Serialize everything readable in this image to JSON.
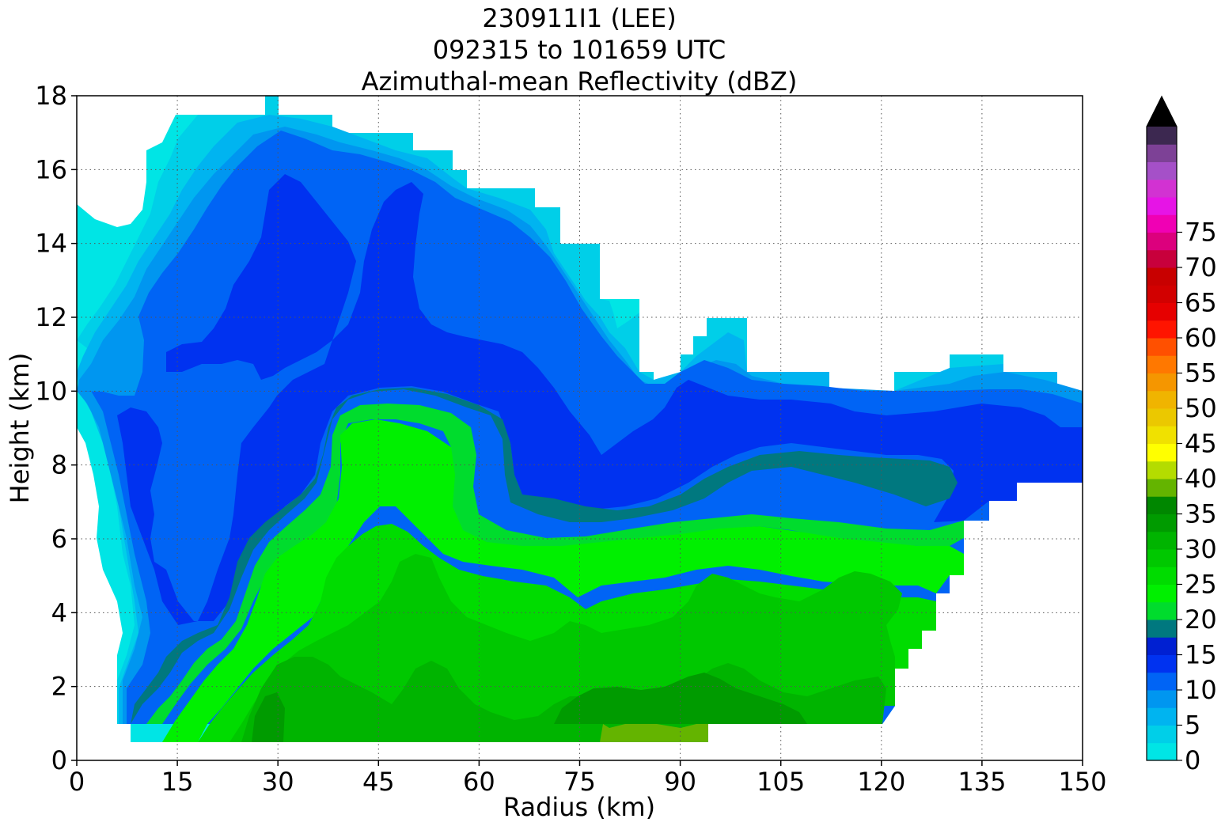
{
  "chart_data": {
    "type": "heatmap",
    "title_lines": [
      "230911I1 (LEE)",
      "092315 to 101659 UTC",
      "Azimuthal-mean Reflectivity (dBZ)"
    ],
    "xlabel": "Radius (km)",
    "ylabel": "Height (km)",
    "xlim": [
      0,
      150
    ],
    "ylim": [
      0,
      18
    ],
    "xticks": [
      0,
      15,
      30,
      45,
      60,
      75,
      90,
      105,
      120,
      135,
      150
    ],
    "yticks": [
      0,
      2,
      4,
      6,
      8,
      10,
      12,
      14,
      16,
      18
    ],
    "grid": true,
    "colorbar": {
      "levels_min": 0,
      "levels_step": 2.5,
      "tick_values": [
        0,
        5,
        10,
        15,
        20,
        25,
        30,
        35,
        40,
        45,
        50,
        55,
        60,
        65,
        70,
        75
      ],
      "extend": "max",
      "extend_color": "#000000",
      "colors": [
        "#00e5e5",
        "#00cfe8",
        "#00b4f0",
        "#0096f0",
        "#0064f5",
        "#0032f0",
        "#0020d2",
        "#00787f",
        "#00dc2d",
        "#00f000",
        "#00dc00",
        "#00c800",
        "#00b400",
        "#009b00",
        "#008700",
        "#64b400",
        "#b4dc00",
        "#ffff00",
        "#f0e100",
        "#ebc800",
        "#f0b400",
        "#f59600",
        "#ff7800",
        "#ff5000",
        "#ff1400",
        "#e60000",
        "#d20000",
        "#c80000",
        "#c8003c",
        "#dc007d",
        "#f000b4",
        "#e614e6",
        "#d232d2",
        "#a550c8",
        "#7d4196",
        "#3c2850"
      ]
    },
    "vertical_profile": {
      "description": "Approximate reflectivity (dBZ) structure with height; regions outside echo are blank",
      "radius_km": [
        0,
        5,
        10,
        15,
        20,
        30,
        40,
        45,
        50,
        60,
        70,
        80,
        90,
        100,
        105,
        120,
        130,
        135,
        145,
        150
      ],
      "echo_top_km": [
        15.0,
        14.5,
        16.5,
        17.5,
        17.5,
        18.0,
        17.5,
        17.0,
        16.5,
        15.5,
        15.0,
        12.0,
        10.0,
        12.0,
        10.5,
        10.0,
        11.0,
        10.5,
        10.0,
        10.0
      ],
      "echo_base_km": [
        10.0,
        8.0,
        1.0,
        0.5,
        0.5,
        0.5,
        0.5,
        0.5,
        0.5,
        0.5,
        0.5,
        0.5,
        0.5,
        1.0,
        1.0,
        1.0,
        4.5,
        6.5,
        7.5,
        7.5
      ],
      "height_15dBZ_km": [
        null,
        null,
        null,
        1.0,
        3.0,
        6.0,
        9.5,
        10.0,
        10.0,
        8.0,
        6.5,
        6.0,
        6.5,
        7.5,
        8.0,
        8.0,
        7.0,
        null,
        null,
        null
      ],
      "max_dBZ_low_levels": 31
    }
  }
}
